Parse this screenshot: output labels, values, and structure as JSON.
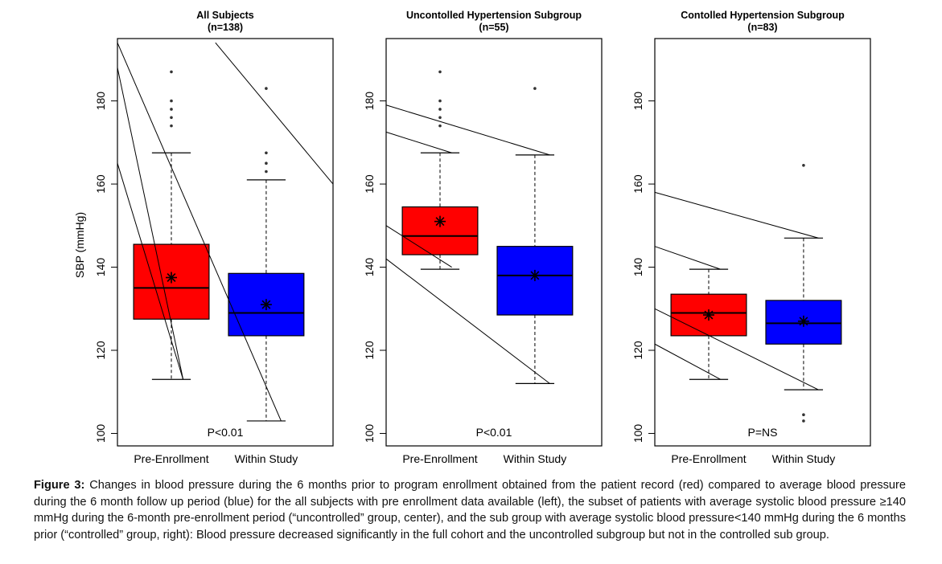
{
  "shared": {
    "ylabel": "SBP (mmHg)",
    "ylim": [
      97,
      195
    ],
    "yticks": [
      100,
      120,
      140,
      160,
      180
    ],
    "categories": [
      "Pre-Enrollment",
      "Within Study"
    ],
    "colors": {
      "pre": "#ff0000",
      "within": "#0000ff",
      "outline": "#000000"
    }
  },
  "chart_data": [
    {
      "type": "boxplot",
      "title": "All Subjects",
      "subtitle": "(n=138)",
      "annotation": "P<0.01",
      "categories": [
        "Pre-Enrollment",
        "Within Study"
      ],
      "boxes": [
        {
          "name": "Pre-Enrollment",
          "color": "#ff0000",
          "whisker_low": 113,
          "q1": 127.5,
          "median": 135,
          "q3": 145.5,
          "whisker_high": 167.5,
          "mean": 137.5,
          "outliers": [
            174,
            176,
            178,
            180,
            187
          ]
        },
        {
          "name": "Within Study",
          "color": "#0000ff",
          "whisker_low": 103,
          "q1": 123.5,
          "median": 129,
          "q3": 138.5,
          "whisker_high": 161,
          "mean": 131,
          "outliers": [
            163,
            165,
            167.5,
            183
          ]
        }
      ],
      "lines": [
        {
          "x": [
            0.0,
            0.67
          ],
          "y": [
            165,
            113
          ]
        },
        {
          "x": [
            0.0,
            0.67
          ],
          "y": [
            188,
            113
          ]
        },
        {
          "x": [
            0.0,
            1.67
          ],
          "y": [
            194,
            103
          ]
        },
        {
          "x": [
            1.0,
            2.2
          ],
          "y": [
            194,
            160
          ]
        }
      ]
    },
    {
      "type": "boxplot",
      "title": "Uncontolled Hypertension Subgroup",
      "subtitle": "(n=55)",
      "annotation": "P<0.01",
      "categories": [
        "Pre-Enrollment",
        "Within Study"
      ],
      "boxes": [
        {
          "name": "Pre-Enrollment",
          "color": "#ff0000",
          "whisker_low": 139.5,
          "q1": 143,
          "median": 147.5,
          "q3": 154.5,
          "whisker_high": 167.5,
          "mean": 151,
          "outliers": [
            174,
            176,
            178,
            180,
            187
          ]
        },
        {
          "name": "Within Study",
          "color": "#0000ff",
          "whisker_low": 112,
          "q1": 128.5,
          "median": 138,
          "q3": 145,
          "whisker_high": 167,
          "mean": 138,
          "outliers": [
            183
          ]
        }
      ],
      "lines": [
        {
          "x": [
            0.0,
            1.67
          ],
          "y": [
            179,
            167
          ]
        },
        {
          "x": [
            0.0,
            0.67
          ],
          "y": [
            172.5,
            167.5
          ]
        },
        {
          "x": [
            0.0,
            0.67
          ],
          "y": [
            150,
            140
          ]
        },
        {
          "x": [
            0.0,
            1.67
          ],
          "y": [
            142,
            112
          ]
        }
      ]
    },
    {
      "type": "boxplot",
      "title": "Contolled Hypertension Subgroup",
      "subtitle": "(n=83)",
      "annotation": "P=NS",
      "categories": [
        "Pre-Enrollment",
        "Within Study"
      ],
      "boxes": [
        {
          "name": "Pre-Enrollment",
          "color": "#ff0000",
          "whisker_low": 113,
          "q1": 123.5,
          "median": 129,
          "q3": 133.5,
          "whisker_high": 139.5,
          "mean": 128.5,
          "outliers": []
        },
        {
          "name": "Within Study",
          "color": "#0000ff",
          "whisker_low": 110.5,
          "q1": 121.5,
          "median": 126.5,
          "q3": 132,
          "whisker_high": 147,
          "mean": 127,
          "outliers": [
            103,
            104.5,
            164.5
          ]
        }
      ],
      "lines": [
        {
          "x": [
            0.0,
            1.67
          ],
          "y": [
            158,
            147
          ]
        },
        {
          "x": [
            0.0,
            0.67
          ],
          "y": [
            145,
            139.5
          ]
        },
        {
          "x": [
            0.0,
            1.67
          ],
          "y": [
            130,
            110.5
          ]
        },
        {
          "x": [
            0.0,
            0.67
          ],
          "y": [
            121.5,
            113
          ]
        }
      ]
    }
  ],
  "caption": {
    "label": "Figure 3:",
    "text": " Changes in blood pressure during the 6 months prior to program enrollment obtained from the patient record (red) compared to average blood pressure during the 6 month follow up period (blue) for the all subjects with pre enrollment data available (left), the subset of patients with average systolic blood pressure ≥140 mmHg during the 6-month pre-enrollment period (“uncontrolled” group, center), and the sub group with average systolic blood pressure<140 mmHg during the 6 months prior (“controlled” group, right): Blood pressure decreased significantly in the full cohort and the uncontrolled subgroup but not in the controlled sub group."
  }
}
